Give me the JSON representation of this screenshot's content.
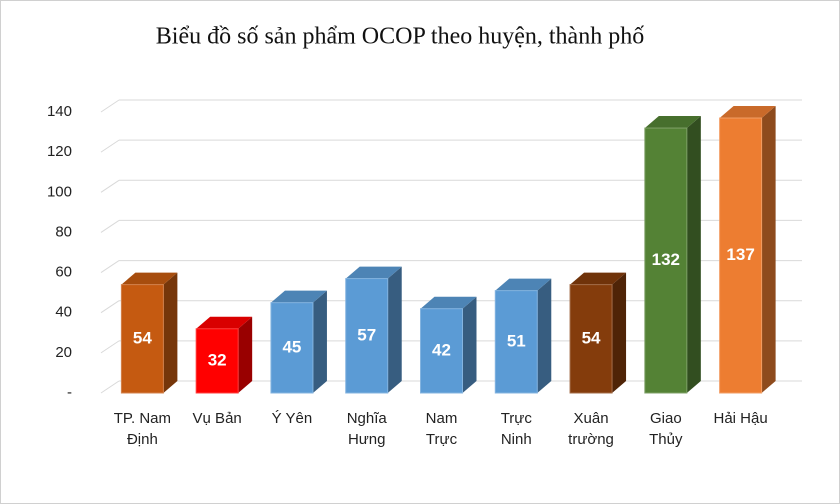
{
  "chart_data": {
    "type": "bar3d",
    "title": "Biểu đồ số sản phẩm OCOP theo huyện, thành phố",
    "categories": [
      "TP. Nam Định",
      "Vụ Bản",
      "Ý Yên",
      "Nghĩa Hưng",
      "Nam Trực",
      "Trực Ninh",
      "Xuân trường",
      "Giao Thủy",
      "Hải Hậu"
    ],
    "values": [
      54,
      32,
      45,
      57,
      42,
      51,
      54,
      132,
      137
    ],
    "colors": [
      "#c55a11",
      "#ff0000",
      "#5b9bd5",
      "#5b9bd5",
      "#5b9bd5",
      "#5b9bd5",
      "#843c0c",
      "#548235",
      "#ed7d31"
    ],
    "ylim": [
      0,
      140
    ],
    "yticks": [
      {
        "value": 0,
        "label": "-"
      },
      20,
      40,
      60,
      80,
      100,
      120,
      140
    ],
    "grid": true
  }
}
